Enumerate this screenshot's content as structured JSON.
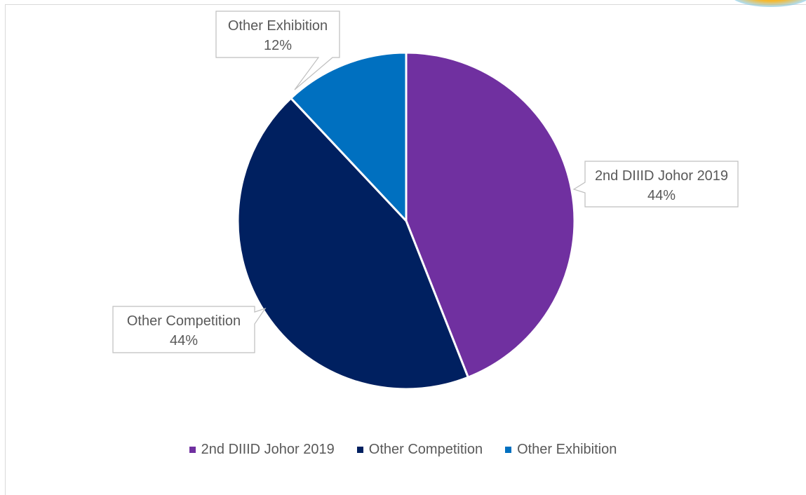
{
  "chart_data": {
    "type": "pie",
    "slices": [
      {
        "label": "2nd DIIID Johor 2019",
        "value": 44,
        "value_label": "44%",
        "color": "#7030a0"
      },
      {
        "label": "Other Competition",
        "value": 44,
        "value_label": "44%",
        "color": "#002060"
      },
      {
        "label": "Other Exhibition",
        "value": 12,
        "value_label": "12%",
        "color": "#0070c0"
      }
    ],
    "legend_position": "bottom",
    "start_angle": "top, clockwise"
  }
}
